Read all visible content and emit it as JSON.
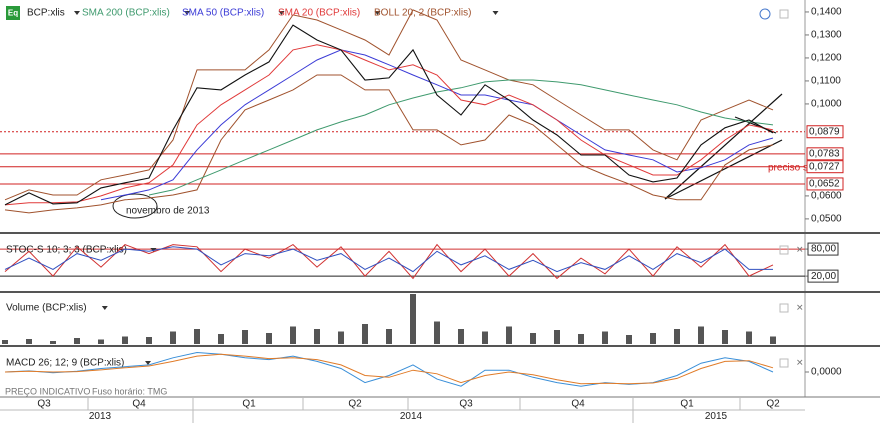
{
  "icon": "Eq",
  "footer": "PREÇO INDICATIVO",
  "timezone": "Fuso horário: TMG",
  "time_axis": {
    "quarters": [
      "Q3",
      "Q4",
      "Q1",
      "Q2",
      "Q3",
      "Q4",
      "Q1",
      "Q2"
    ],
    "years": [
      "2013",
      "2014",
      "2015"
    ]
  },
  "chart_data": [
    {
      "type": "line",
      "ylim": [
        0.0443,
        0.1452
      ],
      "yticks": [
        {
          "value": 0.14,
          "label": "0,1400"
        },
        {
          "value": 0.13,
          "label": "0,1300"
        },
        {
          "value": 0.12,
          "label": "0,1200"
        },
        {
          "value": 0.11,
          "label": "0,1100"
        },
        {
          "value": 0.1,
          "label": "0,1000"
        },
        {
          "value": 0.06,
          "label": "0,0600"
        },
        {
          "value": 0.05,
          "label": "0,0500"
        }
      ],
      "levels": [
        {
          "value": 0.0879,
          "label": "0,0879",
          "dashed": true
        },
        {
          "value": 0.0783,
          "label": "0,0783",
          "dashed": false
        },
        {
          "value": 0.0727,
          "label": "0,0727",
          "dashed": false
        },
        {
          "value": 0.0652,
          "label": "0,0652",
          "dashed": false
        }
      ],
      "annotations": [
        "novembro de 2013",
        "preciso s"
      ],
      "series": [
        {
          "name": "BCP:xlis",
          "color": "#111111",
          "values": [
            0.0561,
            0.0613,
            0.0565,
            0.057,
            0.0635,
            0.0657,
            0.0678,
            0.0887,
            0.107,
            0.1061,
            0.1126,
            0.1183,
            0.1343,
            0.1278,
            0.1235,
            0.1104,
            0.1113,
            0.1235,
            0.1039,
            0.0952,
            0.1083,
            0.1017,
            0.093,
            0.0865,
            0.0778,
            0.0778,
            0.0691,
            0.0661,
            0.0678,
            0.0822,
            0.0896,
            0.093,
            0.0874
          ]
        },
        {
          "name": "SMA 200 (BCP:xlis)",
          "color": "#3f9a6e",
          "values": [
            null,
            null,
            null,
            null,
            null,
            null,
            0.0604,
            0.0626,
            0.067,
            0.0713,
            0.0757,
            0.08,
            0.0843,
            0.0887,
            0.0922,
            0.0952,
            0.0996,
            0.1026,
            0.1052,
            0.107,
            0.1096,
            0.1104,
            0.1104,
            0.1096,
            0.1083,
            0.1061,
            0.1039,
            0.1017,
            0.0996,
            0.0965,
            0.0939,
            0.0922,
            0.0909
          ]
        },
        {
          "name": "SMA 50 (BCP:xlis)",
          "color": "#3b3bd6",
          "values": [
            null,
            null,
            null,
            null,
            0.0583,
            0.0604,
            0.0626,
            0.067,
            0.08,
            0.0909,
            0.0996,
            0.1061,
            0.1126,
            0.1191,
            0.1235,
            0.1213,
            0.117,
            0.1126,
            0.1083,
            0.1039,
            0.1039,
            0.1017,
            0.0996,
            0.093,
            0.0865,
            0.08,
            0.0778,
            0.0757,
            0.0704,
            0.0722,
            0.0757,
            0.0822,
            0.0852
          ]
        },
        {
          "name": "SMA 20 (BCP:xlis)",
          "color": "#e03a3a",
          "values": [
            0.0561,
            0.057,
            0.057,
            0.0574,
            0.06,
            0.0635,
            0.0657,
            0.0735,
            0.0909,
            0.0996,
            0.1061,
            0.1126,
            0.1235,
            0.1257,
            0.1235,
            0.1191,
            0.1148,
            0.117,
            0.1126,
            0.1017,
            0.0996,
            0.1039,
            0.0996,
            0.093,
            0.0843,
            0.0778,
            0.0735,
            0.0691,
            0.0691,
            0.0757,
            0.0843,
            0.0909,
            0.0887
          ]
        },
        {
          "name": "BOLL 20; 2 (BCP:xlis)",
          "color": "#a0522d",
          "values": [
            0.0583,
            0.0626,
            0.0604,
            0.0604,
            0.067,
            0.0691,
            0.0713,
            0.0843,
            0.1148,
            0.1148,
            0.1148,
            0.1235,
            0.1387,
            0.1365,
            0.1322,
            0.1278,
            0.1213,
            0.1409,
            0.1365,
            0.1191,
            0.1148,
            0.1104,
            0.1083,
            0.1017,
            0.0952,
            0.0887,
            0.0887,
            0.08,
            0.0757,
            0.093,
            0.0974,
            0.1017,
            0.0974
          ],
          "lower": [
            0.0539,
            0.0526,
            0.0539,
            0.0548,
            0.0561,
            0.0583,
            0.0591,
            0.0604,
            0.0626,
            0.0843,
            0.0974,
            0.1017,
            0.1061,
            0.1126,
            0.1126,
            0.1061,
            0.1061,
            0.0887,
            0.0887,
            0.0822,
            0.0843,
            0.0952,
            0.0909,
            0.0822,
            0.0735,
            0.0691,
            0.0652,
            0.0604,
            0.0583,
            0.0583,
            0.0735,
            0.08,
            0.0822
          ]
        }
      ]
    },
    {
      "type": "line",
      "title": "STOC-S 10; 3; 3 (BCP:xlis)",
      "ylim": [
        -13,
        109
      ],
      "yticks": [
        {
          "value": 80,
          "label": "80,00"
        },
        {
          "value": 20,
          "label": "20,00"
        }
      ],
      "series": [
        {
          "color": "#d03030",
          "values": [
            30,
            75,
            20,
            85,
            40,
            90,
            70,
            90,
            85,
            30,
            80,
            60,
            90,
            40,
            85,
            20,
            75,
            15,
            90,
            30,
            80,
            20,
            70,
            15,
            60,
            25,
            80,
            20,
            85,
            40,
            90,
            20,
            45
          ]
        },
        {
          "color": "#3050c0",
          "values": [
            35,
            60,
            35,
            70,
            55,
            80,
            75,
            85,
            80,
            45,
            70,
            65,
            80,
            55,
            70,
            35,
            60,
            30,
            75,
            45,
            65,
            35,
            55,
            30,
            50,
            35,
            65,
            35,
            70,
            50,
            80,
            35,
            35
          ]
        }
      ]
    },
    {
      "type": "bar",
      "title": "Volume (BCP:xlis)",
      "color": "#555555",
      "ylim": [
        0,
        100
      ],
      "values": [
        8,
        10,
        6,
        12,
        9,
        15,
        14,
        25,
        30,
        20,
        28,
        22,
        35,
        30,
        25,
        40,
        30,
        100,
        45,
        30,
        25,
        35,
        22,
        28,
        20,
        25,
        18,
        22,
        30,
        35,
        28,
        25,
        15
      ]
    },
    {
      "type": "line",
      "title": "MACD 26; 12; 9 (BCP:xlis)",
      "ylim": [
        -0.0065,
        0.0065
      ],
      "yticks": [
        {
          "value": 0,
          "label": "0,0000"
        }
      ],
      "series": [
        {
          "color": "#3a8fd8",
          "values": [
            0,
            0.0003,
            -0.0002,
            0.0002,
            0.001,
            0.0015,
            0.002,
            0.004,
            0.0055,
            0.005,
            0.004,
            0.0035,
            0.0045,
            0.003,
            0.001,
            -0.003,
            -0.001,
            0.002,
            -0.002,
            -0.004,
            0.0005,
            0.0005,
            -0.0015,
            -0.003,
            -0.004,
            -0.003,
            -0.0035,
            -0.003,
            -0.001,
            0.0025,
            0.004,
            0.003,
            0.0
          ]
        },
        {
          "color": "#e07b28",
          "values": [
            0,
            0.0002,
            0,
            0.0001,
            0.0006,
            0.0012,
            0.0017,
            0.003,
            0.0045,
            0.005,
            0.0045,
            0.0038,
            0.004,
            0.0035,
            0.002,
            -0.001,
            -0.0015,
            0.0005,
            -0.0005,
            -0.003,
            -0.001,
            0.0,
            -0.0008,
            -0.0022,
            -0.0033,
            -0.0032,
            -0.0033,
            -0.0031,
            -0.0018,
            0.001,
            0.003,
            0.0032,
            0.0012
          ]
        }
      ]
    }
  ]
}
